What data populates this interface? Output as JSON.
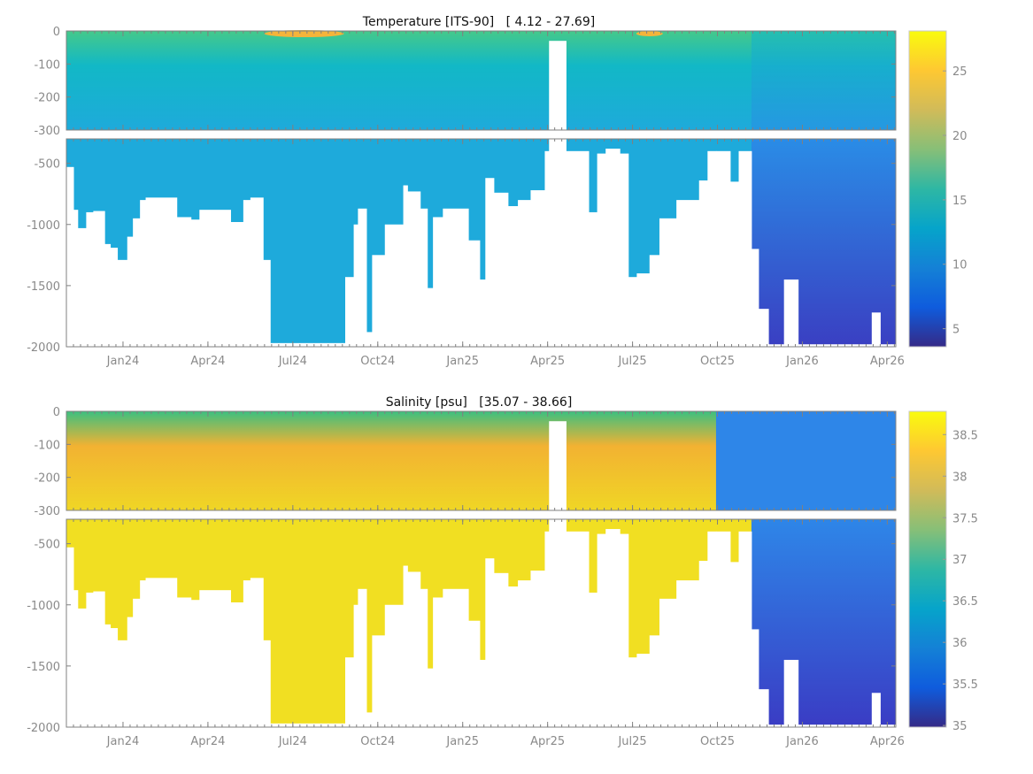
{
  "chart_data": [
    {
      "type": "heatmap",
      "title": "Temperature [ITS-90]   [ 4.12 - 27.69]",
      "xlabel": "",
      "ylabel": "",
      "x_units": "months since Jan 2024",
      "xlim": [
        -2.0,
        27.3
      ],
      "x_ticks": [
        0,
        3,
        6,
        9,
        12,
        15,
        18,
        21,
        24,
        27
      ],
      "x_tick_labels": [
        "Jan24",
        "Apr24",
        "Jul24",
        "Oct24",
        "Jan25",
        "Apr25",
        "Jul25",
        "Oct25",
        "Jan26",
        "Apr26"
      ],
      "upper_ylim": [
        -300,
        0
      ],
      "upper_y_ticks": [
        0,
        -100,
        -200,
        -300
      ],
      "upper_y_tick_labels": [
        "0",
        "-100",
        "-200",
        "-300"
      ],
      "lower_ylim": [
        -2000,
        -300
      ],
      "lower_y_ticks": [
        -500,
        -1000,
        -1500,
        -2000
      ],
      "lower_y_tick_labels": [
        "-500",
        "-1000",
        "-1500",
        "-2000"
      ],
      "value_range": [
        4.12,
        27.69
      ],
      "colorbar": {
        "range": [
          3.6,
          28.1
        ],
        "ticks": [
          5,
          10,
          15,
          20,
          25
        ],
        "tick_labels": [
          "5",
          "10",
          "15",
          "20",
          "25"
        ]
      },
      "field": {
        "surface": "#45c98a",
        "mixed": "#12b8c6",
        "deep": "#1eaadb",
        "deep_late": "#2a8ce6",
        "bottom_late": "#3a3fc2",
        "warm_patch": "#f5b43a"
      },
      "late_regime_start": 22.2
    },
    {
      "type": "heatmap",
      "title": "Salinity [psu]   [35.07 - 38.66]",
      "xlabel": "",
      "ylabel": "",
      "x_units": "months since Jan 2024",
      "xlim": [
        -2.0,
        27.3
      ],
      "x_ticks": [
        0,
        3,
        6,
        9,
        12,
        15,
        18,
        21,
        24,
        27
      ],
      "x_tick_labels": [
        "Jan24",
        "Apr24",
        "Jul24",
        "Oct24",
        "Jan25",
        "Apr25",
        "Jul25",
        "Oct25",
        "Jan26",
        "Apr26"
      ],
      "upper_ylim": [
        -300,
        0
      ],
      "upper_y_ticks": [
        0,
        -100,
        -200,
        -300
      ],
      "upper_y_tick_labels": [
        "0",
        "-100",
        "-200",
        "-300"
      ],
      "lower_ylim": [
        -2000,
        -300
      ],
      "lower_y_ticks": [
        -500,
        -1000,
        -1500,
        -2000
      ],
      "lower_y_tick_labels": [
        "-500",
        "-1000",
        "-1500",
        "-2000"
      ],
      "value_range": [
        35.07,
        38.66
      ],
      "colorbar": {
        "range": [
          34.98,
          38.78
        ],
        "ticks": [
          35,
          35.5,
          36,
          36.5,
          37,
          37.5,
          38,
          38.5
        ],
        "tick_labels": [
          "35",
          "35.5",
          "36",
          "36.5",
          "37",
          "37.5",
          "38",
          "38.5"
        ]
      },
      "field": {
        "surface": "#3cc080",
        "mixed": "#f2b232",
        "deep": "#f0d625",
        "deep_late": "#2e86e8",
        "bottom_late": "#3a3cc4",
        "lower": "#f1df22"
      },
      "fresh_upper_start": 20.95,
      "late_regime_start": 22.2
    }
  ],
  "max_depth_profile": [
    [
      -2.0,
      -530
    ],
    [
      -1.75,
      -880
    ],
    [
      -1.6,
      -1030
    ],
    [
      -1.3,
      -900
    ],
    [
      -1.05,
      -890
    ],
    [
      -0.65,
      -1160
    ],
    [
      -0.45,
      -1190
    ],
    [
      -0.2,
      -1290
    ],
    [
      0.15,
      -1100
    ],
    [
      0.35,
      -950
    ],
    [
      0.6,
      -800
    ],
    [
      0.8,
      -780
    ],
    [
      1.9,
      -940
    ],
    [
      2.4,
      -960
    ],
    [
      2.7,
      -880
    ],
    [
      3.8,
      -980
    ],
    [
      4.25,
      -800
    ],
    [
      4.5,
      -780
    ],
    [
      4.95,
      -1290
    ],
    [
      5.2,
      -1970
    ],
    [
      7.85,
      -1430
    ],
    [
      8.15,
      -1000
    ],
    [
      8.3,
      -870
    ],
    [
      8.6,
      -1880
    ],
    [
      8.8,
      -1250
    ],
    [
      9.25,
      -1000
    ],
    [
      9.9,
      -680
    ],
    [
      10.05,
      -730
    ],
    [
      10.5,
      -870
    ],
    [
      10.75,
      -1520
    ],
    [
      10.95,
      -940
    ],
    [
      11.3,
      -870
    ],
    [
      12.2,
      -1130
    ],
    [
      12.6,
      -1450
    ],
    [
      12.8,
      -620
    ],
    [
      13.1,
      -740
    ],
    [
      13.6,
      -850
    ],
    [
      13.95,
      -800
    ],
    [
      14.4,
      -720
    ],
    [
      14.9,
      -400
    ],
    [
      15.05,
      -30
    ],
    [
      15.65,
      -400
    ],
    [
      16.45,
      -900
    ],
    [
      16.75,
      -420
    ],
    [
      17.05,
      -380
    ],
    [
      17.55,
      -420
    ],
    [
      17.85,
      -1430
    ],
    [
      18.15,
      -1400
    ],
    [
      18.6,
      -1250
    ],
    [
      18.95,
      -950
    ],
    [
      19.55,
      -800
    ],
    [
      20.35,
      -640
    ],
    [
      20.65,
      -400
    ],
    [
      20.95,
      -400
    ],
    [
      21.45,
      -650
    ],
    [
      21.75,
      -400
    ],
    [
      22.2,
      -1200
    ],
    [
      22.45,
      -1690
    ],
    [
      22.8,
      -1980
    ],
    [
      23.35,
      -1450
    ],
    [
      23.85,
      -1980
    ],
    [
      26.45,
      -1720
    ],
    [
      26.75,
      -1980
    ],
    [
      27.15,
      -1980
    ]
  ],
  "parula": [
    "#352a87",
    "#0f5cdd",
    "#1481d6",
    "#06a4ca",
    "#2eb7a4",
    "#87bf77",
    "#d1bb59",
    "#fec832",
    "#f9fb0e"
  ]
}
